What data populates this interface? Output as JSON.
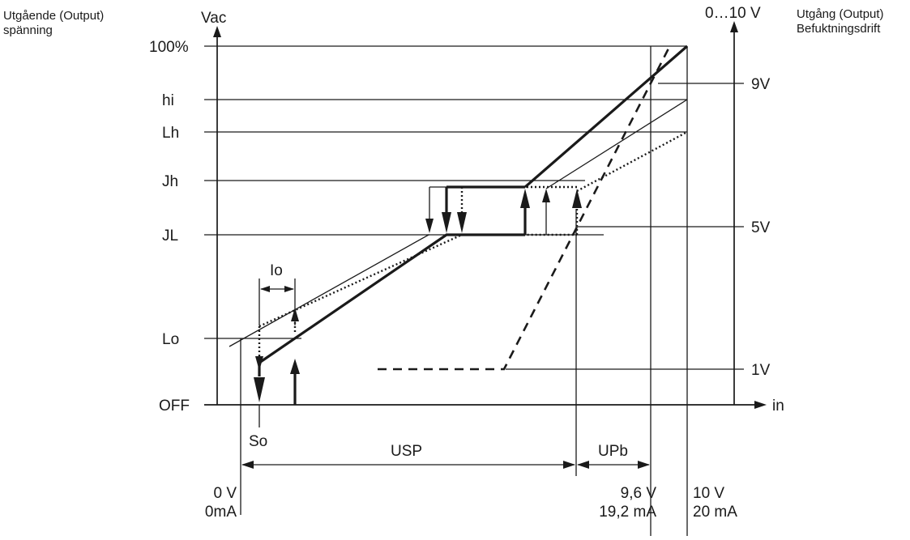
{
  "diagram": {
    "left_axis": {
      "caption_line1": "Utgående (Output)",
      "caption_line2": "spänning",
      "unit": "Vac",
      "levels": [
        "100%",
        "hi",
        "Lh",
        "Jh",
        "JL",
        "Lo",
        "OFF"
      ]
    },
    "right_axis": {
      "top_label": "0…10 V",
      "caption_line1": "Utgång (Output)",
      "caption_line2": "Befuktningsdrift",
      "levels": [
        "9V",
        "5V",
        "1V"
      ]
    },
    "x_axis": {
      "label": "in"
    },
    "markers": {
      "io": "Io",
      "so": "So",
      "usp": "USP",
      "upb": "UPb"
    },
    "bottom_labels": {
      "zero_v": "0 V",
      "zero_ma": "0mA",
      "v96": "9,6 V",
      "ma192": "19,2 mA",
      "v10": "10 V",
      "ma20": "20 mA"
    }
  }
}
